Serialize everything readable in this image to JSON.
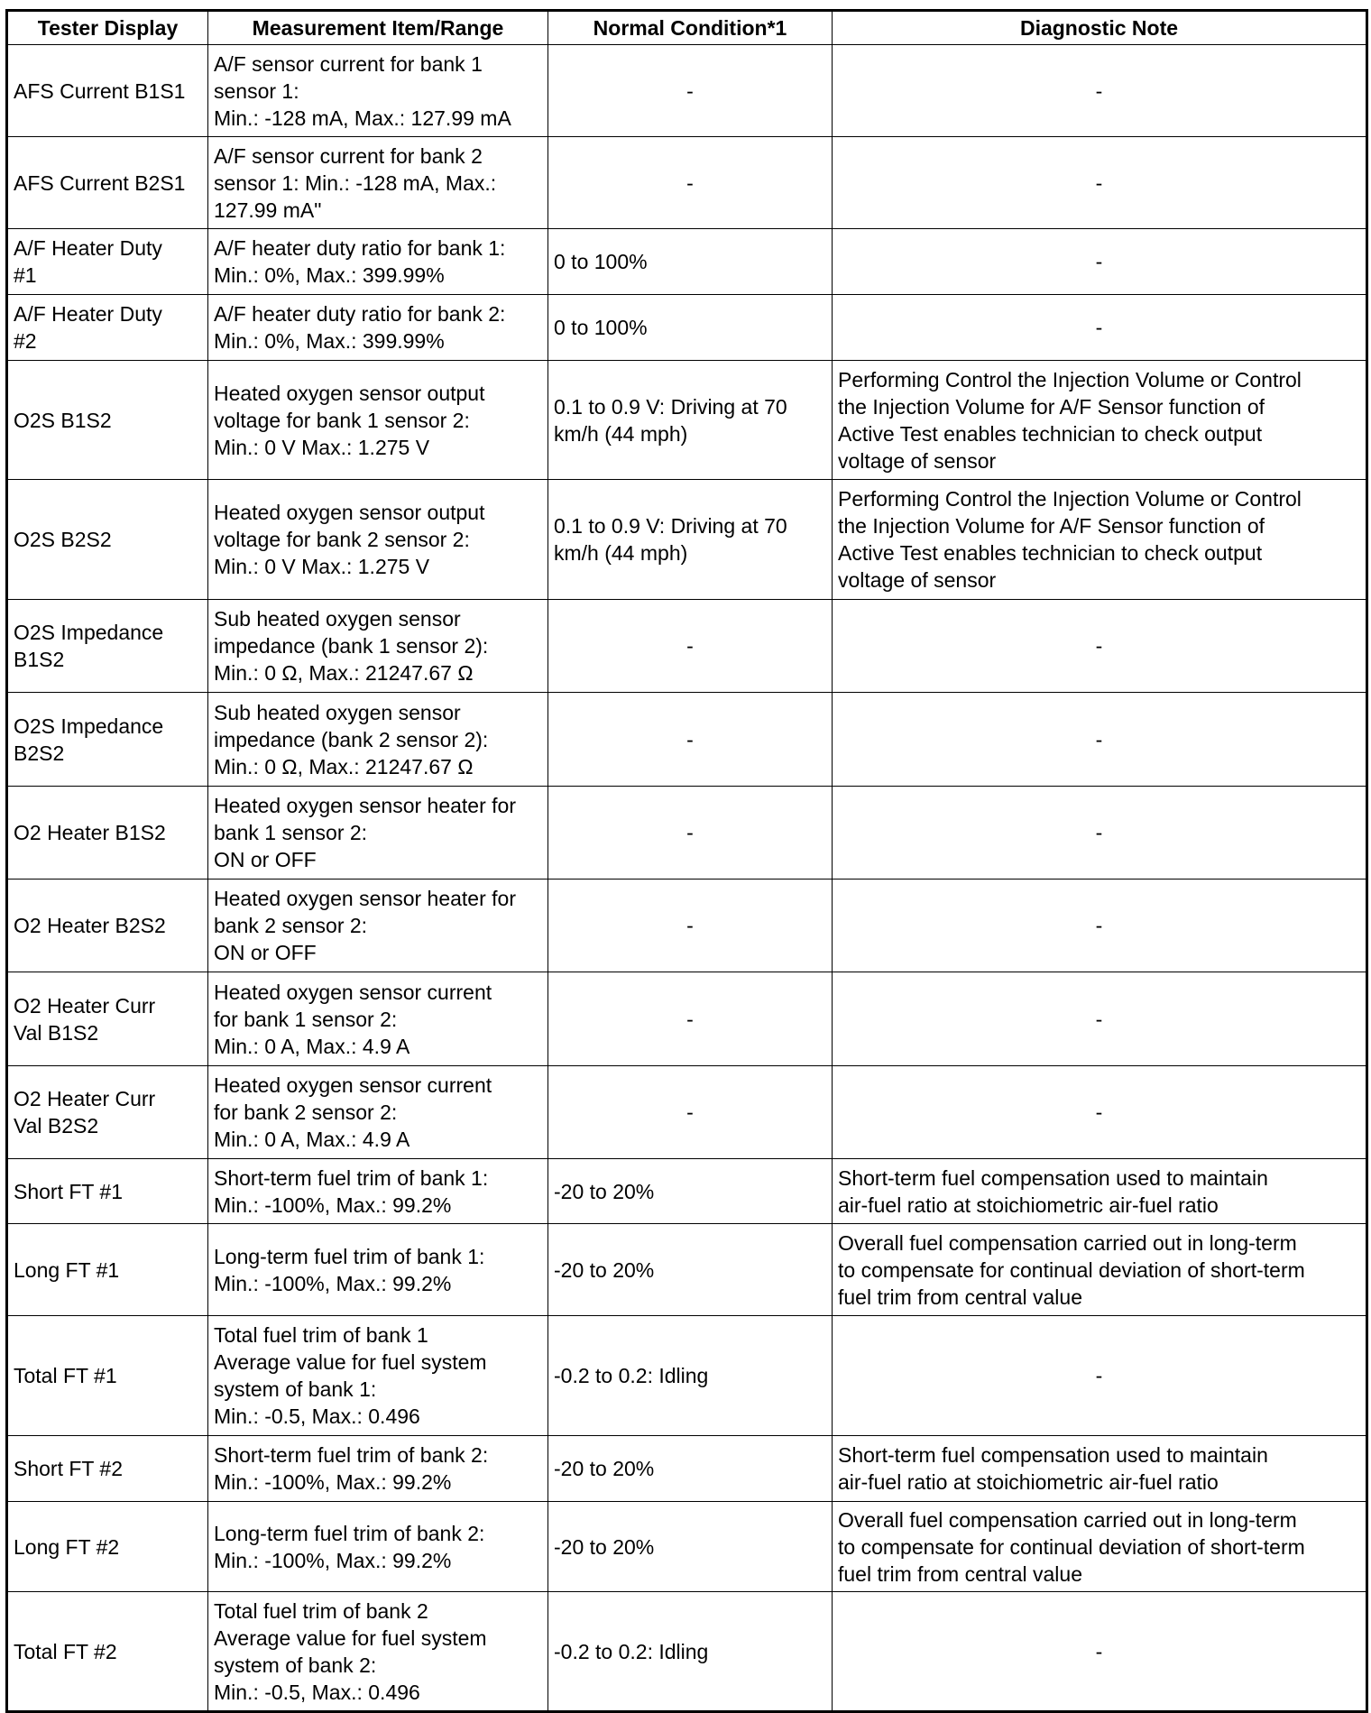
{
  "headers": [
    "Tester Display",
    "Measurement Item/Range",
    "Normal Condition*1",
    "Diagnostic Note"
  ],
  "rows": [
    {
      "display": "AFS Current B1S1",
      "item": "A/F sensor current for bank 1\nsensor 1:\nMin.: -128 mA, Max.: 127.99 mA",
      "normal": "-",
      "note": "-"
    },
    {
      "display": "AFS Current B2S1",
      "item": "A/F sensor current for bank 2\nsensor 1: Min.: -128 mA, Max.:\n127.99 mA\"",
      "normal": "-",
      "note": "-"
    },
    {
      "display": "A/F Heater Duty\n#1",
      "item": "A/F heater duty ratio for bank 1:\nMin.: 0%, Max.: 399.99%",
      "normal": "0 to 100%",
      "note": "-"
    },
    {
      "display": "A/F Heater Duty\n#2",
      "item": "A/F heater duty ratio for bank 2:\nMin.: 0%, Max.: 399.99%",
      "normal": "0 to 100%",
      "note": "-"
    },
    {
      "display": "O2S B1S2",
      "item": "Heated oxygen sensor output\nvoltage for bank 1 sensor 2:\nMin.: 0 V Max.: 1.275 V",
      "normal": "0.1 to 0.9 V: Driving at 70\nkm/h (44 mph)",
      "note": "Performing Control the Injection Volume or Control\nthe Injection Volume for A/F Sensor function of\nActive Test enables technician to check output\nvoltage of sensor"
    },
    {
      "display": "O2S B2S2",
      "item": "Heated oxygen sensor output\nvoltage for bank 2 sensor 2:\nMin.: 0 V Max.: 1.275 V",
      "normal": "0.1 to 0.9 V: Driving at 70\nkm/h (44 mph)",
      "note": "Performing Control the Injection Volume or Control\nthe Injection Volume for A/F Sensor function of\nActive Test enables technician to check output\nvoltage of sensor"
    },
    {
      "display": "O2S Impedance\nB1S2",
      "item": "Sub heated oxygen sensor\nimpedance (bank 1 sensor 2):\nMin.: 0 Ω, Max.: 21247.67 Ω",
      "normal": "-",
      "note": "-"
    },
    {
      "display": "O2S Impedance\nB2S2",
      "item": "Sub heated oxygen sensor\nimpedance (bank 2 sensor 2):\nMin.: 0 Ω, Max.: 21247.67 Ω",
      "normal": "-",
      "note": "-"
    },
    {
      "display": "O2 Heater B1S2",
      "item": "Heated oxygen sensor heater for\nbank 1 sensor 2:\nON or OFF",
      "normal": "-",
      "note": "-"
    },
    {
      "display": "O2 Heater B2S2",
      "item": "Heated oxygen sensor heater for\nbank 2 sensor 2:\nON or OFF",
      "normal": "-",
      "note": "-"
    },
    {
      "display": "O2 Heater Curr\nVal B1S2",
      "item": "Heated oxygen sensor current\nfor bank 1 sensor 2:\nMin.: 0 A, Max.: 4.9 A",
      "normal": "-",
      "note": "-"
    },
    {
      "display": "O2 Heater Curr\nVal B2S2",
      "item": "Heated oxygen sensor current\nfor bank 2 sensor 2:\nMin.: 0 A, Max.: 4.9 A",
      "normal": "-",
      "note": "-"
    },
    {
      "display": "Short FT #1",
      "item": "Short-term fuel trim of bank 1:\nMin.: -100%, Max.: 99.2%",
      "normal": "-20 to 20%",
      "note": "Short-term fuel compensation used to maintain\nair-fuel ratio at stoichiometric air-fuel ratio"
    },
    {
      "display": "Long FT #1",
      "item": "Long-term fuel trim of bank 1:\nMin.: -100%, Max.: 99.2%",
      "normal": "-20 to 20%",
      "note": "Overall fuel compensation carried out in long-term\nto compensate for continual deviation of short-term\nfuel trim from central value"
    },
    {
      "display": "Total FT #1",
      "item": "Total fuel trim of bank 1\nAverage value for fuel system\nsystem of bank 1:\nMin.: -0.5, Max.: 0.496",
      "normal": "-0.2 to 0.2: Idling",
      "note": "-"
    },
    {
      "display": "Short FT #2",
      "item": "Short-term fuel trim of bank 2:\nMin.: -100%, Max.: 99.2%",
      "normal": "-20 to 20%",
      "note": "Short-term fuel compensation used to maintain\nair-fuel ratio at stoichiometric air-fuel ratio"
    },
    {
      "display": "Long FT #2",
      "item": "Long-term fuel trim of bank 2:\nMin.: -100%, Max.: 99.2%",
      "normal": "-20 to 20%",
      "note": "Overall fuel compensation carried out in long-term\nto compensate for continual deviation of short-term\nfuel trim from central value"
    },
    {
      "display": "Total FT #2",
      "item": "Total fuel trim of bank 2\nAverage value for fuel system\nsystem of bank 2:\nMin.: -0.5, Max.: 0.496",
      "normal": "-0.2 to 0.2: Idling",
      "note": "-"
    }
  ]
}
